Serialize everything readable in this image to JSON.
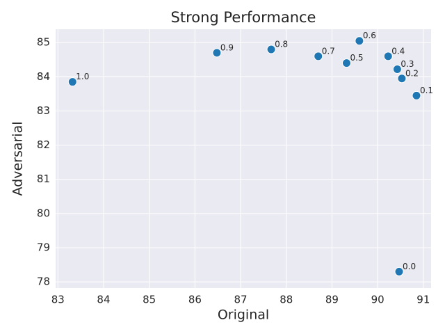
{
  "chart_data": {
    "type": "scatter",
    "title": "Strong Performance",
    "x_label": "Original",
    "y_label": "Adversarial",
    "x": [
      90.47,
      90.85,
      90.53,
      90.43,
      90.23,
      89.32,
      89.6,
      88.7,
      87.67,
      86.48,
      83.32
    ],
    "values": [
      78.3,
      83.45,
      83.95,
      84.22,
      84.6,
      84.4,
      85.05,
      84.6,
      84.8,
      84.7,
      83.85
    ],
    "labels": [
      "0.0",
      "0.1",
      "0.2",
      "0.3",
      "0.4",
      "0.5",
      "0.6",
      "0.7",
      "0.8",
      "0.9",
      "1.0"
    ],
    "color": "#1f77b4",
    "xlim": [
      82.95,
      91.17
    ],
    "xticks": [
      83,
      84,
      85,
      86,
      87,
      88,
      89,
      90,
      91
    ],
    "ylim": [
      77.82,
      85.39
    ],
    "yticks": [
      78,
      79,
      80,
      81,
      82,
      83,
      84,
      85
    ],
    "grid": true
  }
}
